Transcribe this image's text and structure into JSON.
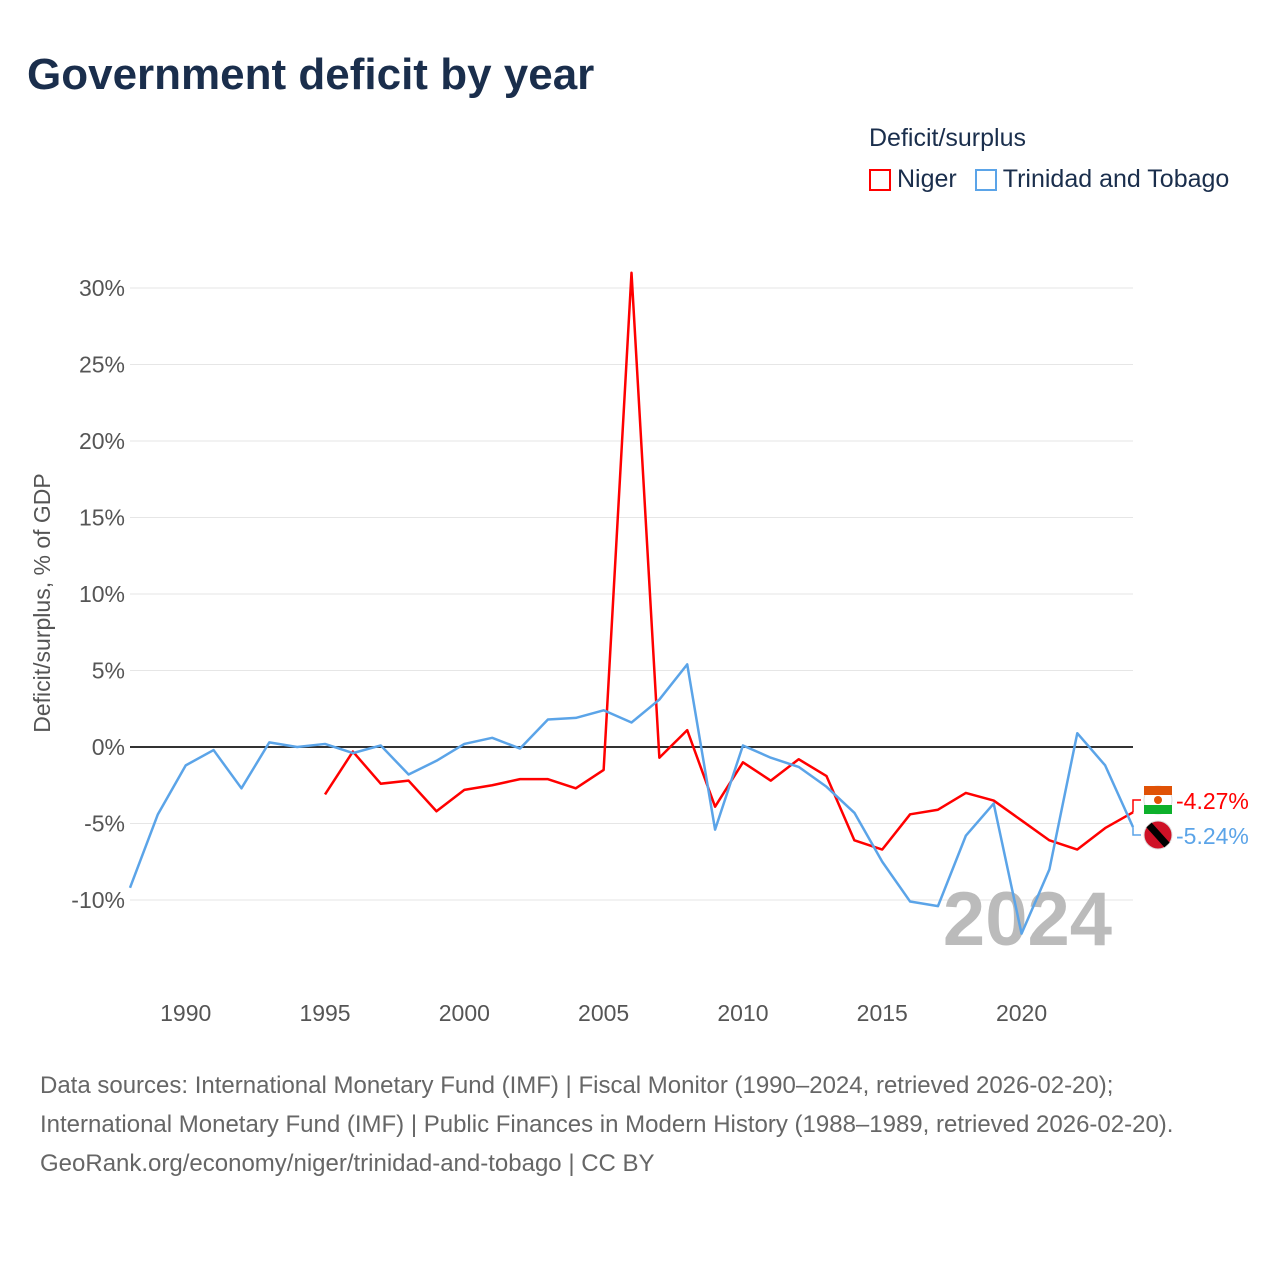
{
  "title": "Government deficit by year",
  "legend": {
    "title": "Deficit/surplus"
  },
  "watermark_year": "2024",
  "sources": {
    "line1": "Data sources: International Monetary Fund (IMF) | Fiscal Monitor (1990–2024, retrieved 2026-02-20); International Monetary Fund (IMF) | Public Finances in Modern History (1988–1989, retrieved 2026-02-20).",
    "line2": "GeoRank.org/economy/niger/trinidad-and-tobago | CC BY"
  },
  "chart_data": {
    "type": "line",
    "title": "Government deficit by year",
    "ylabel": "Deficit/surplus, % of GDP",
    "xlabel": "",
    "xlim": [
      1988,
      2024
    ],
    "ylim": [
      -15,
      32.5
    ],
    "xticks": [
      1990,
      1995,
      2000,
      2005,
      2010,
      2015,
      2020
    ],
    "yticks": [
      -10,
      -5,
      0,
      5,
      10,
      15,
      20,
      25,
      30
    ],
    "ytick_labels": [
      "-10%",
      "-5%",
      "0%",
      "5%",
      "10%",
      "15%",
      "20%",
      "25%",
      "30%"
    ],
    "grid": true,
    "legend_position": "top-right",
    "series": [
      {
        "name": "Niger",
        "color": "#ff0000",
        "end_label": "-4.27%",
        "start_year": 1995,
        "values": [
          -3.1,
          -0.3,
          -2.4,
          -2.2,
          -4.2,
          -2.8,
          -2.5,
          -2.1,
          -2.1,
          -2.7,
          -1.5,
          31.0,
          -0.7,
          1.1,
          -3.9,
          -1.0,
          -2.2,
          -0.8,
          -1.9,
          -6.1,
          -6.7,
          -4.4,
          -4.1,
          -3.0,
          -3.5,
          -4.8,
          -6.1,
          -6.7,
          -5.3,
          -4.27
        ]
      },
      {
        "name": "Trinidad and Tobago",
        "color": "#5ba4e8",
        "end_label": "-5.24%",
        "start_year": 1988,
        "values": [
          -9.2,
          -4.4,
          -1.2,
          -0.2,
          -2.7,
          0.3,
          0.0,
          0.2,
          -0.4,
          0.1,
          -1.8,
          -0.9,
          0.2,
          0.6,
          -0.1,
          1.8,
          1.9,
          2.4,
          1.6,
          3.1,
          5.4,
          -5.4,
          0.1,
          -0.7,
          -1.3,
          -2.6,
          -4.3,
          -7.5,
          -10.1,
          -10.4,
          -5.8,
          -3.7,
          -12.2,
          -8.0,
          0.9,
          -1.2,
          -5.24
        ]
      }
    ]
  }
}
